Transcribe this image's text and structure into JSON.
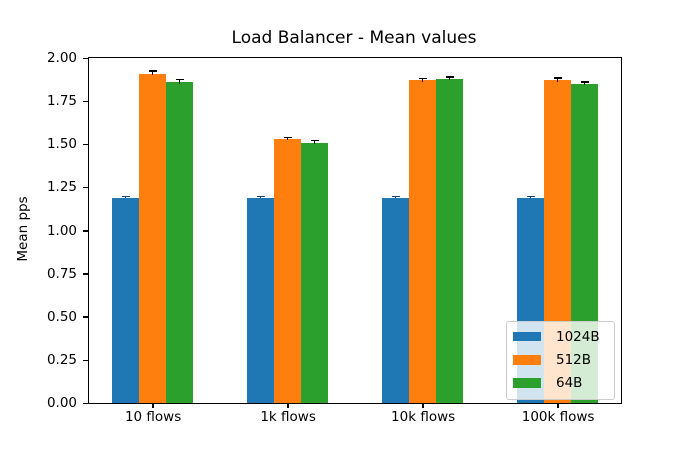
{
  "chart_data": {
    "type": "bar",
    "title": "Load Balancer - Mean values",
    "xlabel": "",
    "ylabel": "Mean pps",
    "categories": [
      "10 flows",
      "1k flows",
      "10k flows",
      "100k flows"
    ],
    "series": [
      {
        "name": "1024B",
        "color": "#1f77b4",
        "error_color": "#14486e",
        "values": [
          1.19,
          1.19,
          1.19,
          1.19
        ],
        "errors": [
          0.004,
          0.003,
          0.003,
          0.003
        ]
      },
      {
        "name": "512B",
        "color": "#ff7f0e",
        "error_color": "#000000",
        "values": [
          1.91,
          1.53,
          1.87,
          1.87
        ],
        "errors": [
          0.01,
          0.005,
          0.007,
          0.009
        ]
      },
      {
        "name": "64B",
        "color": "#2ca02c",
        "error_color": "#000000",
        "values": [
          1.86,
          1.51,
          1.88,
          1.85
        ],
        "errors": [
          0.013,
          0.008,
          0.006,
          0.007
        ]
      }
    ],
    "ylim": [
      0,
      2.0
    ],
    "ytick_labels": [
      "0.00",
      "0.25",
      "0.50",
      "0.75",
      "1.00",
      "1.25",
      "1.50",
      "1.75",
      "2.00"
    ],
    "grid": false,
    "legend": {
      "position": "lower right",
      "entries": [
        "1024B",
        "512B",
        "64B"
      ]
    },
    "axis_color": "#000000",
    "background_color": "#ffffff"
  }
}
